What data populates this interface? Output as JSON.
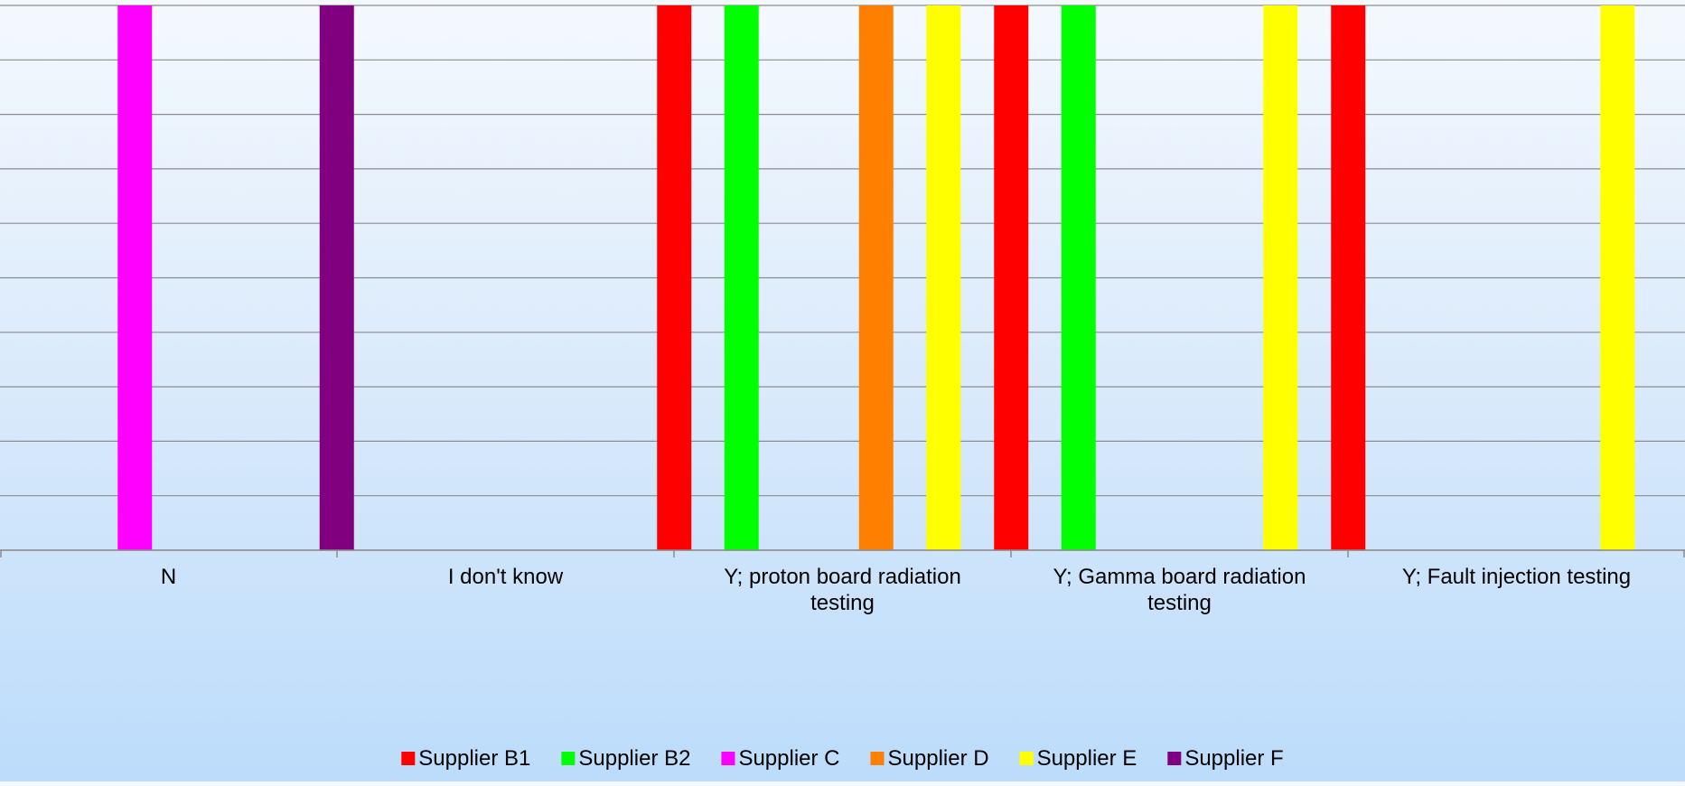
{
  "chart_data": {
    "type": "bar",
    "title": "",
    "xlabel": "",
    "ylabel": "",
    "ylim": [
      0,
      1
    ],
    "grid": true,
    "gridlines": 10,
    "legend_position": "bottom",
    "categories": [
      "N",
      "I don't know",
      "Y; proton board radiation testing",
      "Y; Gamma board radiation testing",
      "Y; Fault injection testing"
    ],
    "category_lines": [
      [
        "N"
      ],
      [
        "I don't know"
      ],
      [
        "Y; proton board radiation",
        "testing"
      ],
      [
        "Y; Gamma board radiation",
        "testing"
      ],
      [
        "Y; Fault injection testing"
      ]
    ],
    "series": [
      {
        "name": "Supplier B1",
        "color": "#ff0000",
        "values": [
          0,
          0,
          1,
          1,
          1
        ]
      },
      {
        "name": "Supplier B2",
        "color": "#00ff00",
        "values": [
          0,
          0,
          1,
          1,
          0
        ]
      },
      {
        "name": "Supplier C",
        "color": "#ff00ff",
        "values": [
          1,
          0,
          0,
          0,
          0
        ]
      },
      {
        "name": "Supplier D",
        "color": "#ff8000",
        "values": [
          0,
          0,
          1,
          0,
          0
        ]
      },
      {
        "name": "Supplier E",
        "color": "#ffff00",
        "values": [
          0,
          0,
          1,
          1,
          1
        ]
      },
      {
        "name": "Supplier F",
        "color": "#800080",
        "values": [
          1,
          0,
          0,
          0,
          0
        ]
      }
    ]
  }
}
